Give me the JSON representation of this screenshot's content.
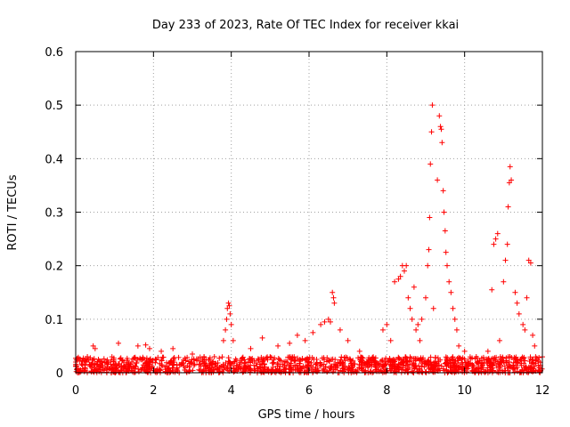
{
  "chart_data": {
    "type": "scatter",
    "title": "Day 233 of 2023, Rate Of TEC Index for receiver kkai",
    "xlabel": "GPS time / hours",
    "ylabel": "ROTI / TECUs",
    "xlim": [
      0,
      12
    ],
    "ylim": [
      0,
      0.6
    ],
    "xticks": [
      0,
      2,
      4,
      6,
      8,
      10,
      12
    ],
    "xtick_labels": [
      "0",
      "2",
      "4",
      "6",
      "8",
      "10",
      "12"
    ],
    "yticks": [
      0,
      0.1,
      0.2,
      0.3,
      0.4,
      0.5,
      0.6
    ],
    "ytick_labels": [
      "0",
      "0.1",
      "0.2",
      "0.3",
      "0.4",
      "0.5",
      "0.6"
    ],
    "grid": true,
    "marker": "plus",
    "color": "#ff0000",
    "baseline_band": {
      "x_range": [
        0,
        12
      ],
      "y_range": [
        0.0,
        0.03
      ],
      "note": "dense continuous points"
    },
    "series": [
      {
        "name": "ROTI",
        "points": [
          [
            0.3,
            0.03
          ],
          [
            0.45,
            0.05
          ],
          [
            0.5,
            0.045
          ],
          [
            1.1,
            0.055
          ],
          [
            1.6,
            0.05
          ],
          [
            1.8,
            0.052
          ],
          [
            1.9,
            0.045
          ],
          [
            2.2,
            0.04
          ],
          [
            2.5,
            0.045
          ],
          [
            3.0,
            0.035
          ],
          [
            3.3,
            0.03
          ],
          [
            3.8,
            0.06
          ],
          [
            3.85,
            0.08
          ],
          [
            3.88,
            0.1
          ],
          [
            3.9,
            0.12
          ],
          [
            3.93,
            0.13
          ],
          [
            3.95,
            0.125
          ],
          [
            3.97,
            0.11
          ],
          [
            4.0,
            0.09
          ],
          [
            4.05,
            0.06
          ],
          [
            4.5,
            0.045
          ],
          [
            4.8,
            0.065
          ],
          [
            5.2,
            0.05
          ],
          [
            5.5,
            0.055
          ],
          [
            5.7,
            0.07
          ],
          [
            5.9,
            0.06
          ],
          [
            6.1,
            0.075
          ],
          [
            6.3,
            0.09
          ],
          [
            6.4,
            0.095
          ],
          [
            6.5,
            0.1
          ],
          [
            6.55,
            0.095
          ],
          [
            6.6,
            0.15
          ],
          [
            6.63,
            0.14
          ],
          [
            6.65,
            0.13
          ],
          [
            6.8,
            0.08
          ],
          [
            7.0,
            0.06
          ],
          [
            7.3,
            0.04
          ],
          [
            7.9,
            0.08
          ],
          [
            8.0,
            0.09
          ],
          [
            8.1,
            0.06
          ],
          [
            8.2,
            0.17
          ],
          [
            8.3,
            0.175
          ],
          [
            8.35,
            0.18
          ],
          [
            8.4,
            0.2
          ],
          [
            8.45,
            0.19
          ],
          [
            8.5,
            0.2
          ],
          [
            8.55,
            0.14
          ],
          [
            8.6,
            0.12
          ],
          [
            8.65,
            0.1
          ],
          [
            8.7,
            0.16
          ],
          [
            8.75,
            0.08
          ],
          [
            8.8,
            0.09
          ],
          [
            8.85,
            0.06
          ],
          [
            8.9,
            0.1
          ],
          [
            9.0,
            0.14
          ],
          [
            9.05,
            0.2
          ],
          [
            9.08,
            0.23
          ],
          [
            9.1,
            0.29
          ],
          [
            9.12,
            0.39
          ],
          [
            9.15,
            0.45
          ],
          [
            9.17,
            0.5
          ],
          [
            9.2,
            0.12
          ],
          [
            9.3,
            0.36
          ],
          [
            9.35,
            0.48
          ],
          [
            9.38,
            0.46
          ],
          [
            9.4,
            0.455
          ],
          [
            9.42,
            0.43
          ],
          [
            9.45,
            0.34
          ],
          [
            9.47,
            0.3
          ],
          [
            9.5,
            0.265
          ],
          [
            9.52,
            0.225
          ],
          [
            9.55,
            0.2
          ],
          [
            9.6,
            0.17
          ],
          [
            9.65,
            0.15
          ],
          [
            9.7,
            0.12
          ],
          [
            9.75,
            0.1
          ],
          [
            9.8,
            0.08
          ],
          [
            9.85,
            0.05
          ],
          [
            10.0,
            0.04
          ],
          [
            10.3,
            0.03
          ],
          [
            10.6,
            0.04
          ],
          [
            10.7,
            0.155
          ],
          [
            10.75,
            0.24
          ],
          [
            10.8,
            0.25
          ],
          [
            10.85,
            0.26
          ],
          [
            10.9,
            0.06
          ],
          [
            11.0,
            0.17
          ],
          [
            11.05,
            0.21
          ],
          [
            11.1,
            0.24
          ],
          [
            11.12,
            0.31
          ],
          [
            11.15,
            0.355
          ],
          [
            11.17,
            0.385
          ],
          [
            11.2,
            0.36
          ],
          [
            11.3,
            0.15
          ],
          [
            11.35,
            0.13
          ],
          [
            11.4,
            0.11
          ],
          [
            11.5,
            0.09
          ],
          [
            11.55,
            0.08
          ],
          [
            11.6,
            0.14
          ],
          [
            11.65,
            0.21
          ],
          [
            11.7,
            0.205
          ],
          [
            11.75,
            0.07
          ],
          [
            11.8,
            0.05
          ]
        ]
      }
    ]
  }
}
